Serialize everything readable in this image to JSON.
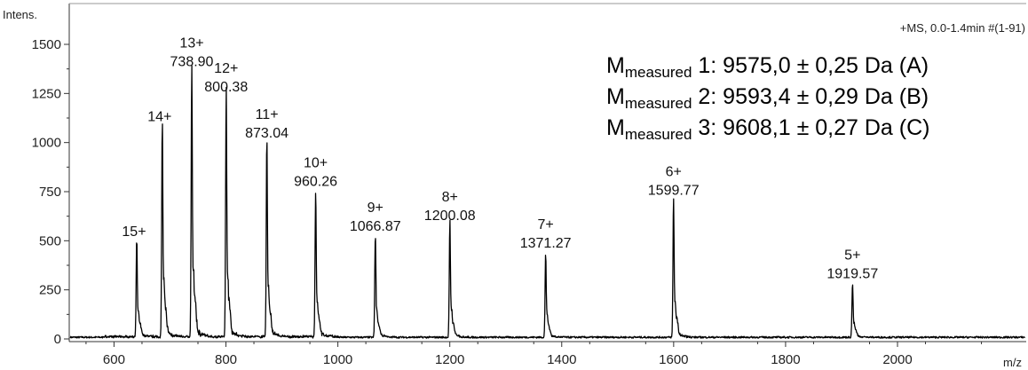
{
  "chart_data": {
    "type": "line",
    "ylabel": "Intens.",
    "xlabel": "m/z",
    "header": "+MS, 0.0-1.4min #(1-91)",
    "xlim": [
      520,
      2230
    ],
    "ylim": [
      -20,
      1600
    ],
    "x_ticks": [
      600,
      800,
      1000,
      1200,
      1400,
      1600,
      1800,
      2000
    ],
    "y_ticks": [
      0,
      250,
      500,
      750,
      1000,
      1250,
      1500
    ],
    "peaks": [
      {
        "charge": "15+",
        "mz": 640.5,
        "intensity": 480
      },
      {
        "charge": "14+",
        "mz": 686.2,
        "intensity": 1065
      },
      {
        "charge": "13+",
        "mz": 738.9,
        "mz_label": "738.90",
        "intensity": 1345
      },
      {
        "charge": "12+",
        "mz": 800.38,
        "mz_label": "800.38",
        "intensity": 1215
      },
      {
        "charge": "11+",
        "mz": 873.04,
        "mz_label": "873.04",
        "intensity": 980
      },
      {
        "charge": "10+",
        "mz": 960.26,
        "mz_label": "960.26",
        "intensity": 735
      },
      {
        "charge": "9+",
        "mz": 1066.87,
        "mz_label": "1066.87",
        "intensity": 505
      },
      {
        "charge": "8+",
        "mz": 1200.08,
        "mz_label": "1200.08",
        "intensity": 560
      },
      {
        "charge": "7+",
        "mz": 1371.27,
        "mz_label": "1371.27",
        "intensity": 420
      },
      {
        "charge": "6+",
        "mz": 1599.77,
        "mz_label": "1599.77",
        "intensity": 690
      },
      {
        "charge": "5+",
        "mz": 1919.57,
        "mz_label": "1919.57",
        "intensity": 265
      }
    ],
    "measured_masses": [
      {
        "prefix": "M",
        "subscript": "measured",
        "index": " 1:",
        "value": "  9575,0 ± 0,25 Da (A)"
      },
      {
        "prefix": "M",
        "subscript": "measured",
        "index": " 2:",
        "value": "  9593,4 ± 0,29 Da (B)"
      },
      {
        "prefix": "M",
        "subscript": "measured",
        "index": " 3:",
        "value": "  9608,1 ± 0,27 Da (C)"
      }
    ]
  }
}
